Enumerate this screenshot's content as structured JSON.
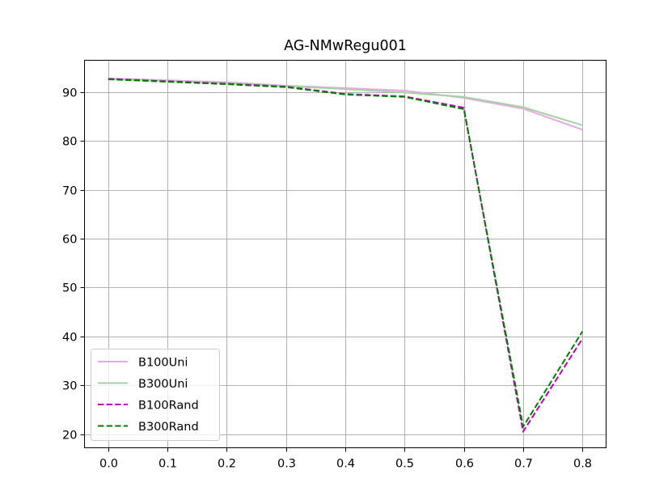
{
  "chart_data": {
    "type": "line",
    "title": "AG-NMwRegu001",
    "xlabel": "",
    "ylabel": "",
    "x": [
      0.0,
      0.1,
      0.2,
      0.3,
      0.4,
      0.5,
      0.6,
      0.7,
      0.8
    ],
    "x_ticks": [
      "0.0",
      "0.1",
      "0.2",
      "0.3",
      "0.4",
      "0.5",
      "0.6",
      "0.7",
      "0.8"
    ],
    "y_ticks": [
      "20",
      "30",
      "40",
      "50",
      "60",
      "70",
      "80",
      "90"
    ],
    "xlim": [
      -0.04,
      0.84
    ],
    "ylim": [
      17.2,
      96.5
    ],
    "grid": true,
    "legend_position": "lower-left",
    "series": [
      {
        "name": "B100Uni",
        "color": "#e8a7e8",
        "style": "solid",
        "values": [
          92.8,
          92.4,
          92.0,
          91.3,
          90.8,
          90.3,
          88.8,
          86.6,
          82.3
        ]
      },
      {
        "name": "B300Uni",
        "color": "#a3d3a3",
        "style": "solid",
        "values": [
          92.7,
          92.3,
          91.8,
          91.2,
          90.6,
          89.9,
          89.0,
          86.9,
          83.2
        ]
      },
      {
        "name": "B100Rand",
        "color": "#bf00bf",
        "style": "dashed",
        "values": [
          92.7,
          92.2,
          91.7,
          91.1,
          89.6,
          89.1,
          86.8,
          20.5,
          39.5
        ]
      },
      {
        "name": "B300Rand",
        "color": "#007f00",
        "style": "dashed",
        "values": [
          92.6,
          92.1,
          91.6,
          91.0,
          89.5,
          89.0,
          86.5,
          21.5,
          41.0
        ]
      }
    ]
  }
}
